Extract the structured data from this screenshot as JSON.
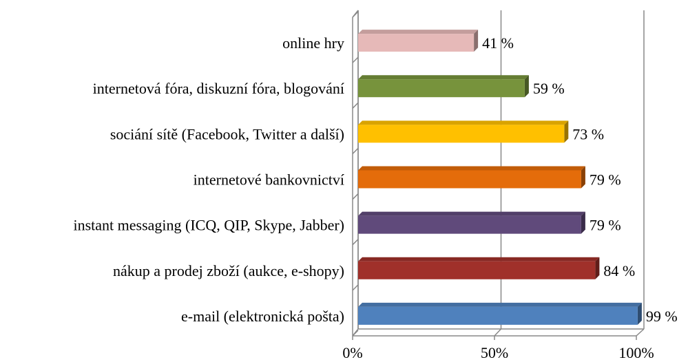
{
  "chart_data": {
    "type": "bar3d_horizontal",
    "categories": [
      "online hry",
      "internetová fóra, diskuzní fóra, blogování",
      "sociání sítě (Facebook, Twitter a další)",
      "internetové bankovnictví",
      "instant messaging (ICQ, QIP, Skype, Jabber)",
      "nákup a prodej zboží (aukce, e-shopy)",
      "e-mail (elektronická pošta)"
    ],
    "values": [
      41,
      59,
      73,
      79,
      79,
      84,
      99
    ],
    "value_labels": [
      "41 %",
      "59 %",
      "73 %",
      "79 %",
      "79 %",
      "84 %",
      "99 %"
    ],
    "colors": [
      "#e6b9b8",
      "#77933c",
      "#ffc000",
      "#e46c0a",
      "#604a7b",
      "#a0302a",
      "#4f81bd"
    ],
    "xlim": [
      0,
      100
    ],
    "xticks": [
      {
        "value": 0,
        "label": "0%"
      },
      {
        "value": 50,
        "label": "50%"
      },
      {
        "value": 100,
        "label": "100%"
      }
    ],
    "grid": true
  }
}
